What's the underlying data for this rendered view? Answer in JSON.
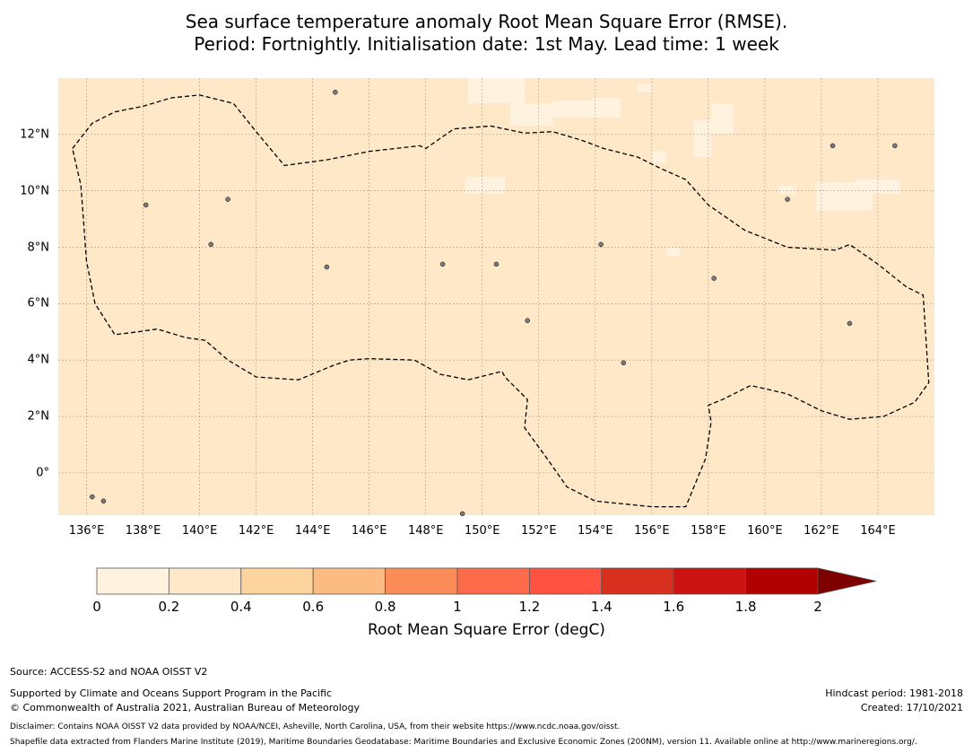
{
  "title": {
    "line1": "Sea surface temperature anomaly Root Mean Square Error (RMSE).",
    "line2": "Period: Fortnightly. Initialisation date: 1st May. Lead time: 1 week"
  },
  "map": {
    "lon_range": [
      135.0,
      166.0
    ],
    "lat_range": [
      -1.5,
      14.0
    ],
    "lon_ticks": [
      "136°E",
      "138°E",
      "140°E",
      "142°E",
      "144°E",
      "146°E",
      "148°E",
      "150°E",
      "152°E",
      "154°E",
      "156°E",
      "158°E",
      "160°E",
      "162°E",
      "164°E"
    ],
    "lon_tick_values": [
      136,
      138,
      140,
      142,
      144,
      146,
      148,
      150,
      152,
      154,
      156,
      158,
      160,
      162,
      164
    ],
    "lat_ticks": [
      "12°N",
      "10°N",
      "8°N",
      "6°N",
      "4°N",
      "2°N",
      "0°"
    ],
    "lat_tick_values": [
      12,
      10,
      8,
      6,
      4,
      2,
      0
    ],
    "background_color": "#fee8c8",
    "low_value_color": "#fff3e0",
    "gridlines": true,
    "eez_boundary": [
      [
        135.5,
        11.5
      ],
      [
        136.2,
        12.4
      ],
      [
        137.0,
        12.8
      ],
      [
        138.0,
        13.0
      ],
      [
        139.0,
        13.3
      ],
      [
        140.0,
        13.4
      ],
      [
        141.2,
        13.1
      ],
      [
        142.0,
        12.1
      ],
      [
        143.0,
        10.9
      ],
      [
        144.5,
        11.1
      ],
      [
        146.0,
        11.4
      ],
      [
        147.8,
        11.6
      ],
      [
        148.0,
        11.5
      ],
      [
        149.0,
        12.2
      ],
      [
        150.3,
        12.3
      ],
      [
        151.5,
        12.05
      ],
      [
        152.5,
        12.1
      ],
      [
        153.5,
        11.8
      ],
      [
        154.3,
        11.5
      ],
      [
        155.5,
        11.2
      ],
      [
        156.3,
        10.8
      ],
      [
        157.2,
        10.4
      ],
      [
        158.0,
        9.5
      ],
      [
        159.3,
        8.6
      ],
      [
        160.8,
        8.0
      ],
      [
        162.5,
        7.9
      ],
      [
        163.0,
        8.1
      ],
      [
        164.0,
        7.4
      ],
      [
        165.0,
        6.6
      ],
      [
        165.6,
        6.3
      ],
      [
        165.8,
        3.2
      ],
      [
        165.3,
        2.5
      ],
      [
        164.2,
        2.0
      ],
      [
        163.0,
        1.9
      ],
      [
        162.0,
        2.2
      ],
      [
        160.8,
        2.8
      ],
      [
        159.5,
        3.1
      ],
      [
        158.5,
        2.6
      ],
      [
        158.0,
        2.4
      ],
      [
        158.1,
        1.8
      ],
      [
        157.9,
        0.5
      ],
      [
        157.2,
        -1.2
      ],
      [
        156.0,
        -1.2
      ],
      [
        154.0,
        -1.0
      ],
      [
        153.0,
        -0.5
      ],
      [
        152.3,
        0.5
      ],
      [
        151.5,
        1.6
      ],
      [
        151.6,
        2.6
      ],
      [
        150.8,
        3.4
      ],
      [
        150.7,
        3.6
      ],
      [
        149.5,
        3.3
      ],
      [
        148.5,
        3.5
      ],
      [
        147.6,
        4.0
      ],
      [
        146.0,
        4.05
      ],
      [
        145.3,
        4.0
      ],
      [
        144.7,
        3.8
      ],
      [
        143.5,
        3.3
      ],
      [
        142.0,
        3.4
      ],
      [
        141.0,
        4.0
      ],
      [
        140.2,
        4.7
      ],
      [
        139.5,
        4.8
      ],
      [
        138.5,
        5.1
      ],
      [
        137.8,
        5.0
      ],
      [
        137.0,
        4.9
      ],
      [
        136.3,
        6.0
      ],
      [
        136.0,
        7.5
      ],
      [
        135.8,
        10.2
      ],
      [
        135.5,
        11.5
      ]
    ],
    "low_value_patches": [
      [
        149.5,
        13.1,
        2.0,
        0.9
      ],
      [
        151.0,
        12.3,
        1.5,
        0.8
      ],
      [
        152.5,
        12.6,
        1.4,
        0.6
      ],
      [
        153.9,
        12.6,
        1.0,
        0.7
      ],
      [
        155.5,
        13.5,
        0.5,
        0.3
      ],
      [
        157.5,
        11.2,
        0.6,
        1.3
      ],
      [
        158.1,
        12.0,
        0.8,
        1.1
      ],
      [
        149.4,
        9.9,
        1.4,
        0.6
      ],
      [
        160.5,
        9.9,
        0.6,
        0.3
      ],
      [
        163.2,
        9.9,
        1.6,
        0.5
      ],
      [
        161.8,
        9.3,
        2.0,
        1.0
      ],
      [
        156.0,
        11.0,
        0.5,
        0.4
      ],
      [
        156.5,
        7.7,
        0.5,
        0.3
      ]
    ],
    "islands": [
      [
        144.8,
        13.5
      ],
      [
        138.1,
        9.5
      ],
      [
        150.5,
        7.4
      ],
      [
        158.2,
        6.9
      ],
      [
        163.0,
        5.3
      ],
      [
        154.2,
        8.1
      ],
      [
        160.8,
        9.7
      ],
      [
        144.5,
        7.3
      ],
      [
        149.3,
        -1.45
      ],
      [
        141.0,
        9.7
      ],
      [
        140.4,
        8.1
      ],
      [
        148.6,
        7.4
      ],
      [
        151.6,
        5.4
      ],
      [
        155.0,
        3.9
      ],
      [
        162.4,
        11.6
      ],
      [
        164.6,
        11.6
      ],
      [
        136.2,
        -0.85
      ],
      [
        136.6,
        -1.0
      ]
    ]
  },
  "colorbar": {
    "ticks": [
      "0",
      "0.2",
      "0.4",
      "0.6",
      "0.8",
      "1",
      "1.2",
      "1.4",
      "1.6",
      "1.8",
      "2"
    ],
    "colors": [
      "#fff3e0",
      "#fee8c8",
      "#fdd49e",
      "#fdbb84",
      "#fc8d59",
      "#fe6b4b",
      "#ff5240",
      "#d7301f",
      "#cb1313",
      "#b00000"
    ],
    "extend_color": "#7f0000",
    "label": "Root Mean Square Error (degC)"
  },
  "footer": {
    "source": "Source: ACCESS-S2 and NOAA OISST V2",
    "supported": "Supported by Climate and Oceans Support Program in the Pacific",
    "copyright": "© Commonwealth of Australia 2021, Australian Bureau of Meteorology",
    "hindcast": "Hindcast period: 1981-2018",
    "created": "Created: 17/10/2021",
    "disclaimer": "Disclaimer: Contains NOAA OISST V2 data provided by NOAA/NCEI, Asheville, North Carolina, USA, from their website https://www.ncdc.noaa.gov/oisst.",
    "shapefile": "Shapefile data extracted from Flanders Marine Institute (2019), Maritime Boundaries Geodatabase: Maritime Boundaries and Exclusive Economic Zones (200NM), version 11. Available online at http://www.marineregions.org/."
  }
}
